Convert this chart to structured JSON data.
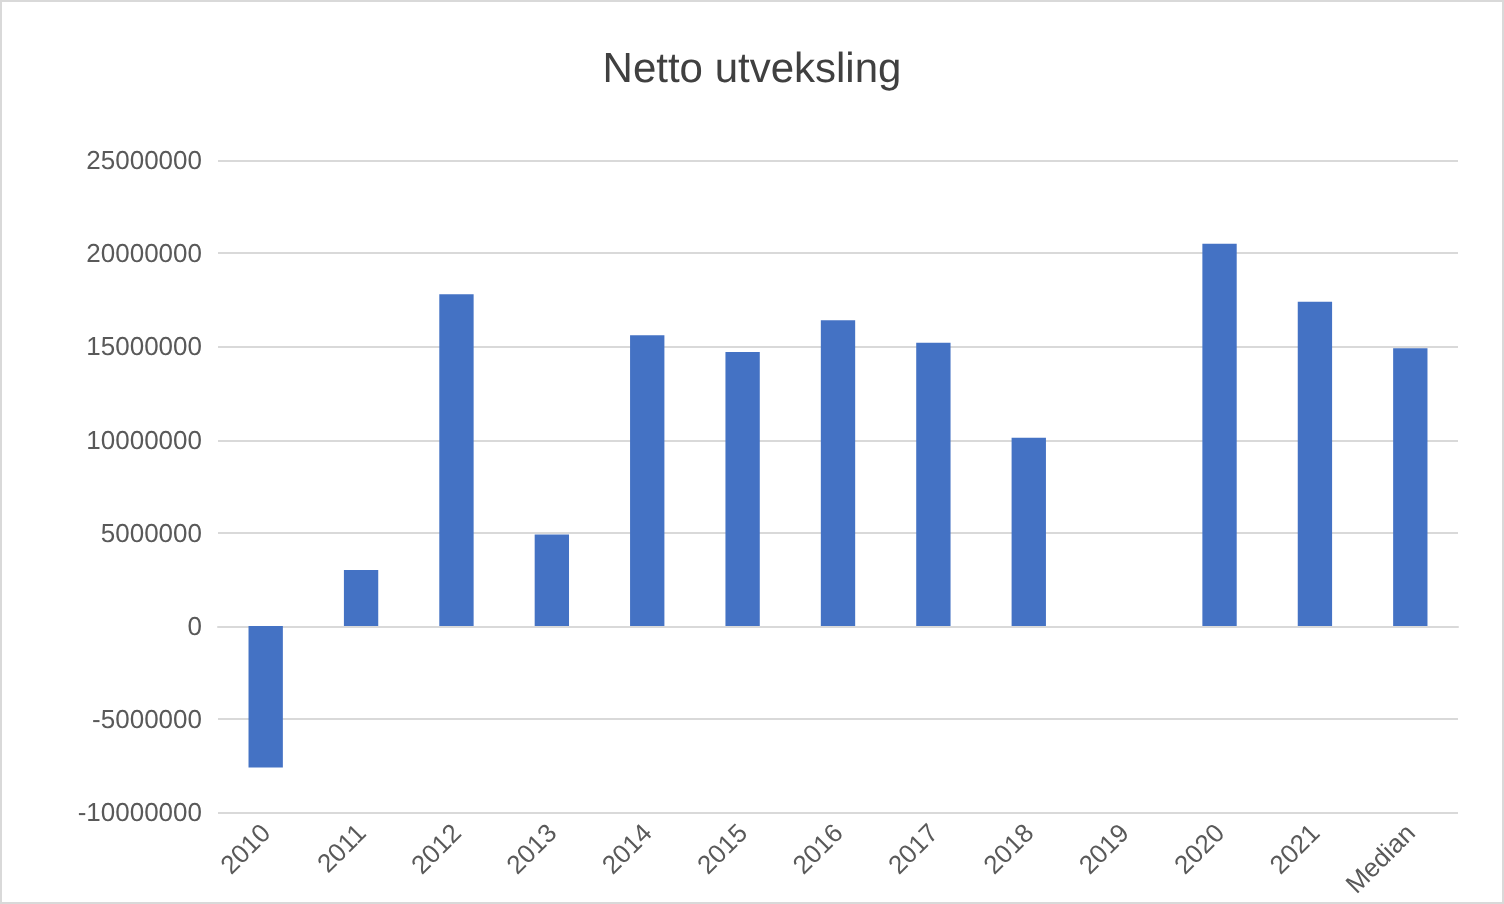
{
  "chart_data": {
    "type": "bar",
    "title": "Netto utveksling",
    "categories": [
      "2010",
      "2011",
      "2012",
      "2013",
      "2014",
      "2015",
      "2016",
      "2017",
      "2018",
      "2019",
      "2020",
      "2021",
      "Median"
    ],
    "values": [
      -7600000,
      3000000,
      17800000,
      4900000,
      15600000,
      14700000,
      16400000,
      15200000,
      10100000,
      0,
      20500000,
      17400000,
      14900000
    ],
    "color": "#4472c4",
    "ylim": [
      -10000000,
      25000000
    ],
    "yticks": [
      -10000000,
      -5000000,
      0,
      5000000,
      10000000,
      15000000,
      20000000,
      25000000
    ],
    "grid": "y"
  }
}
